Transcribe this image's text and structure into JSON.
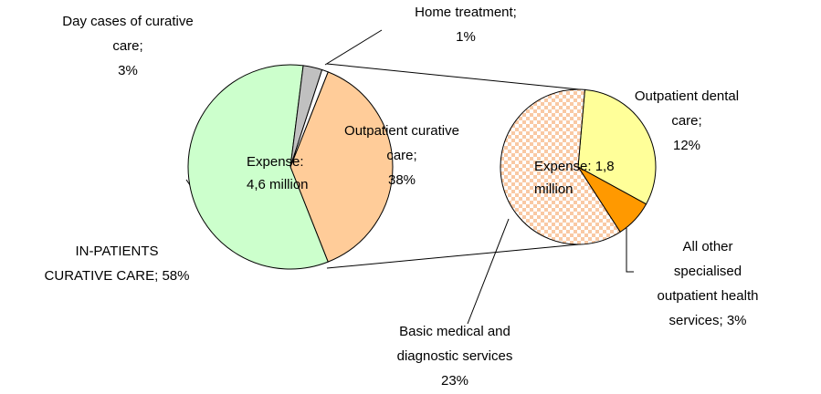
{
  "chart_data": [
    {
      "type": "pie",
      "series": [
        {
          "values": [
            38,
            58,
            3,
            1
          ],
          "colors": [
            "#ffcc99",
            "#ccffcc",
            "#c0c0c0",
            "#ffffff"
          ],
          "value_labels": [
            "Outpatient curative\ncare;\n38%",
            "IN-PATIENTS\nCURATIVE CARE; 58%",
            "Day cases of curative\ncare;\n3%",
            "Home treatment;\n1%"
          ]
        }
      ],
      "annotation": "Expense:\n4,6 million"
    },
    {
      "type": "pie",
      "series": [
        {
          "values": [
            12,
            3,
            23
          ],
          "colors": [
            "#ffff99",
            "#ff9900",
            "url(#check)"
          ],
          "value_labels": [
            "Outpatient dental care;\n12%",
            "All other specialised\noutpatient health\nservices; 3%",
            "Basic medical and\ndiagnostic services\n23%"
          ]
        }
      ],
      "annotation": "Expense: 1,8\nmillion"
    }
  ]
}
